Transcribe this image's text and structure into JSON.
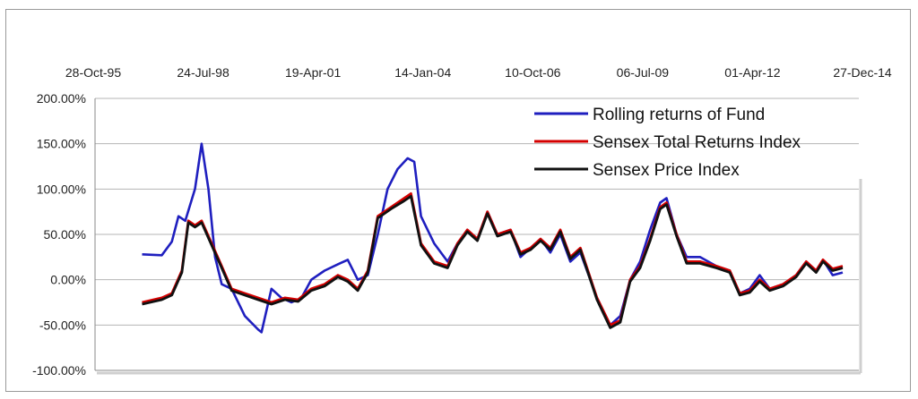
{
  "chart_data": {
    "type": "line",
    "title": "",
    "xlabel": "",
    "ylabel": "",
    "x_ticks": [
      "28-Oct-95",
      "24-Jul-98",
      "19-Apr-01",
      "14-Jan-04",
      "10-Oct-06",
      "06-Jul-09",
      "01-Apr-12",
      "27-Dec-14"
    ],
    "y_ticks": [
      "200.00%",
      "150.00%",
      "100.00%",
      "50.00%",
      "0.00%",
      "-50.00%",
      "-100.00%"
    ],
    "ylim": [
      -100,
      200
    ],
    "xlim": [
      "1995-10-28",
      "2014-12-27"
    ],
    "grid": "horizontal",
    "legend_position": "top-right",
    "series": [
      {
        "name": "Rolling returns of Fund",
        "color": "#1f1fbf",
        "points": [
          [
            "1997-01-01",
            28
          ],
          [
            "1997-07-01",
            27
          ],
          [
            "1997-10-01",
            42
          ],
          [
            "1997-12-01",
            70
          ],
          [
            "1998-02-01",
            65
          ],
          [
            "1998-05-01",
            100
          ],
          [
            "1998-07-01",
            150
          ],
          [
            "1998-09-01",
            100
          ],
          [
            "1998-11-01",
            25
          ],
          [
            "1999-01-01",
            -5
          ],
          [
            "1999-04-01",
            -10
          ],
          [
            "1999-08-01",
            -40
          ],
          [
            "1999-12-01",
            -55
          ],
          [
            "2000-01-01",
            -58
          ],
          [
            "2000-04-01",
            -10
          ],
          [
            "2000-07-01",
            -20
          ],
          [
            "2000-10-01",
            -25
          ],
          [
            "2001-01-01",
            -20
          ],
          [
            "2001-04-01",
            0
          ],
          [
            "2001-08-01",
            10
          ],
          [
            "2001-12-01",
            17
          ],
          [
            "2002-03-01",
            22
          ],
          [
            "2002-06-01",
            0
          ],
          [
            "2002-09-01",
            5
          ],
          [
            "2002-12-01",
            50
          ],
          [
            "2003-03-01",
            100
          ],
          [
            "2003-06-01",
            122
          ],
          [
            "2003-09-01",
            134
          ],
          [
            "2003-11-01",
            130
          ],
          [
            "2004-01-01",
            70
          ],
          [
            "2004-05-01",
            40
          ],
          [
            "2004-09-01",
            20
          ],
          [
            "2004-12-01",
            40
          ],
          [
            "2005-03-01",
            55
          ],
          [
            "2005-06-01",
            45
          ],
          [
            "2005-09-01",
            75
          ],
          [
            "2005-12-01",
            50
          ],
          [
            "2006-04-01",
            55
          ],
          [
            "2006-07-01",
            25
          ],
          [
            "2006-10-01",
            35
          ],
          [
            "2007-01-01",
            45
          ],
          [
            "2007-04-01",
            30
          ],
          [
            "2007-07-01",
            50
          ],
          [
            "2007-10-01",
            20
          ],
          [
            "2008-01-01",
            30
          ],
          [
            "2008-06-01",
            -20
          ],
          [
            "2008-10-01",
            -50
          ],
          [
            "2009-01-01",
            -40
          ],
          [
            "2009-04-01",
            0
          ],
          [
            "2009-07-01",
            20
          ],
          [
            "2009-10-01",
            55
          ],
          [
            "2010-01-01",
            85
          ],
          [
            "2010-03-01",
            90
          ],
          [
            "2010-06-01",
            50
          ],
          [
            "2010-09-01",
            25
          ],
          [
            "2011-01-01",
            25
          ],
          [
            "2011-06-01",
            15
          ],
          [
            "2011-10-01",
            10
          ],
          [
            "2012-01-01",
            -15
          ],
          [
            "2012-04-01",
            -10
          ],
          [
            "2012-07-01",
            5
          ],
          [
            "2012-10-01",
            -10
          ],
          [
            "2013-02-01",
            -5
          ],
          [
            "2013-06-01",
            5
          ],
          [
            "2013-09-01",
            20
          ],
          [
            "2013-12-01",
            10
          ],
          [
            "2014-02-01",
            22
          ],
          [
            "2014-05-01",
            5
          ],
          [
            "2014-08-01",
            8
          ]
        ]
      },
      {
        "name": "Sensex Total Returns Index",
        "color": "#d40000",
        "points": [
          [
            "1997-01-01",
            -25
          ],
          [
            "1997-07-01",
            -20
          ],
          [
            "1997-10-01",
            -15
          ],
          [
            "1998-01-01",
            10
          ],
          [
            "1998-03-01",
            65
          ],
          [
            "1998-05-01",
            60
          ],
          [
            "1998-07-01",
            65
          ],
          [
            "1998-10-01",
            40
          ],
          [
            "1999-01-01",
            15
          ],
          [
            "1999-04-01",
            -10
          ],
          [
            "1999-08-01",
            -15
          ],
          [
            "1999-12-01",
            -20
          ],
          [
            "2000-04-01",
            -25
          ],
          [
            "2000-08-01",
            -20
          ],
          [
            "2000-12-01",
            -22
          ],
          [
            "2001-04-01",
            -10
          ],
          [
            "2001-08-01",
            -5
          ],
          [
            "2001-12-01",
            5
          ],
          [
            "2002-03-01",
            0
          ],
          [
            "2002-06-01",
            -10
          ],
          [
            "2002-09-01",
            10
          ],
          [
            "2002-12-01",
            70
          ],
          [
            "2003-04-01",
            80
          ],
          [
            "2003-08-01",
            90
          ],
          [
            "2003-10-01",
            95
          ],
          [
            "2004-01-01",
            40
          ],
          [
            "2004-05-01",
            20
          ],
          [
            "2004-09-01",
            15
          ],
          [
            "2004-12-01",
            40
          ],
          [
            "2005-03-01",
            55
          ],
          [
            "2005-06-01",
            45
          ],
          [
            "2005-09-01",
            75
          ],
          [
            "2005-12-01",
            50
          ],
          [
            "2006-04-01",
            55
          ],
          [
            "2006-07-01",
            30
          ],
          [
            "2006-10-01",
            35
          ],
          [
            "2007-01-01",
            45
          ],
          [
            "2007-04-01",
            35
          ],
          [
            "2007-07-01",
            55
          ],
          [
            "2007-10-01",
            25
          ],
          [
            "2008-01-01",
            35
          ],
          [
            "2008-06-01",
            -20
          ],
          [
            "2008-10-01",
            -50
          ],
          [
            "2009-01-01",
            -45
          ],
          [
            "2009-04-01",
            0
          ],
          [
            "2009-07-01",
            15
          ],
          [
            "2009-10-01",
            45
          ],
          [
            "2010-01-01",
            80
          ],
          [
            "2010-03-01",
            85
          ],
          [
            "2010-06-01",
            50
          ],
          [
            "2010-09-01",
            20
          ],
          [
            "2011-01-01",
            20
          ],
          [
            "2011-06-01",
            15
          ],
          [
            "2011-10-01",
            10
          ],
          [
            "2012-01-01",
            -15
          ],
          [
            "2012-04-01",
            -12
          ],
          [
            "2012-07-01",
            0
          ],
          [
            "2012-10-01",
            -10
          ],
          [
            "2013-02-01",
            -5
          ],
          [
            "2013-06-01",
            5
          ],
          [
            "2013-09-01",
            20
          ],
          [
            "2013-12-01",
            10
          ],
          [
            "2014-02-01",
            22
          ],
          [
            "2014-05-01",
            12
          ],
          [
            "2014-08-01",
            15
          ]
        ]
      },
      {
        "name": "Sensex Price Index",
        "color": "#111111",
        "points": [
          [
            "1997-01-01",
            -27
          ],
          [
            "1997-07-01",
            -22
          ],
          [
            "1997-10-01",
            -17
          ],
          [
            "1998-01-01",
            8
          ],
          [
            "1998-03-01",
            63
          ],
          [
            "1998-05-01",
            58
          ],
          [
            "1998-07-01",
            63
          ],
          [
            "1998-10-01",
            38
          ],
          [
            "1999-01-01",
            13
          ],
          [
            "1999-04-01",
            -12
          ],
          [
            "1999-08-01",
            -17
          ],
          [
            "1999-12-01",
            -22
          ],
          [
            "2000-04-01",
            -27
          ],
          [
            "2000-08-01",
            -22
          ],
          [
            "2000-12-01",
            -24
          ],
          [
            "2001-04-01",
            -12
          ],
          [
            "2001-08-01",
            -7
          ],
          [
            "2001-12-01",
            3
          ],
          [
            "2002-03-01",
            -2
          ],
          [
            "2002-06-01",
            -12
          ],
          [
            "2002-09-01",
            8
          ],
          [
            "2002-12-01",
            68
          ],
          [
            "2003-04-01",
            78
          ],
          [
            "2003-08-01",
            87
          ],
          [
            "2003-10-01",
            92
          ],
          [
            "2004-01-01",
            38
          ],
          [
            "2004-05-01",
            18
          ],
          [
            "2004-09-01",
            13
          ],
          [
            "2004-12-01",
            38
          ],
          [
            "2005-03-01",
            53
          ],
          [
            "2005-06-01",
            43
          ],
          [
            "2005-09-01",
            73
          ],
          [
            "2005-12-01",
            48
          ],
          [
            "2006-04-01",
            53
          ],
          [
            "2006-07-01",
            28
          ],
          [
            "2006-10-01",
            33
          ],
          [
            "2007-01-01",
            43
          ],
          [
            "2007-04-01",
            33
          ],
          [
            "2007-07-01",
            53
          ],
          [
            "2007-10-01",
            23
          ],
          [
            "2008-01-01",
            33
          ],
          [
            "2008-06-01",
            -22
          ],
          [
            "2008-10-01",
            -53
          ],
          [
            "2009-01-01",
            -47
          ],
          [
            "2009-04-01",
            -2
          ],
          [
            "2009-07-01",
            13
          ],
          [
            "2009-10-01",
            43
          ],
          [
            "2010-01-01",
            78
          ],
          [
            "2010-03-01",
            83
          ],
          [
            "2010-06-01",
            48
          ],
          [
            "2010-09-01",
            18
          ],
          [
            "2011-01-01",
            18
          ],
          [
            "2011-06-01",
            13
          ],
          [
            "2011-10-01",
            8
          ],
          [
            "2012-01-01",
            -17
          ],
          [
            "2012-04-01",
            -14
          ],
          [
            "2012-07-01",
            -2
          ],
          [
            "2012-10-01",
            -12
          ],
          [
            "2013-02-01",
            -7
          ],
          [
            "2013-06-01",
            3
          ],
          [
            "2013-09-01",
            18
          ],
          [
            "2013-12-01",
            8
          ],
          [
            "2014-02-01",
            20
          ],
          [
            "2014-05-01",
            10
          ],
          [
            "2014-08-01",
            13
          ]
        ]
      }
    ]
  }
}
